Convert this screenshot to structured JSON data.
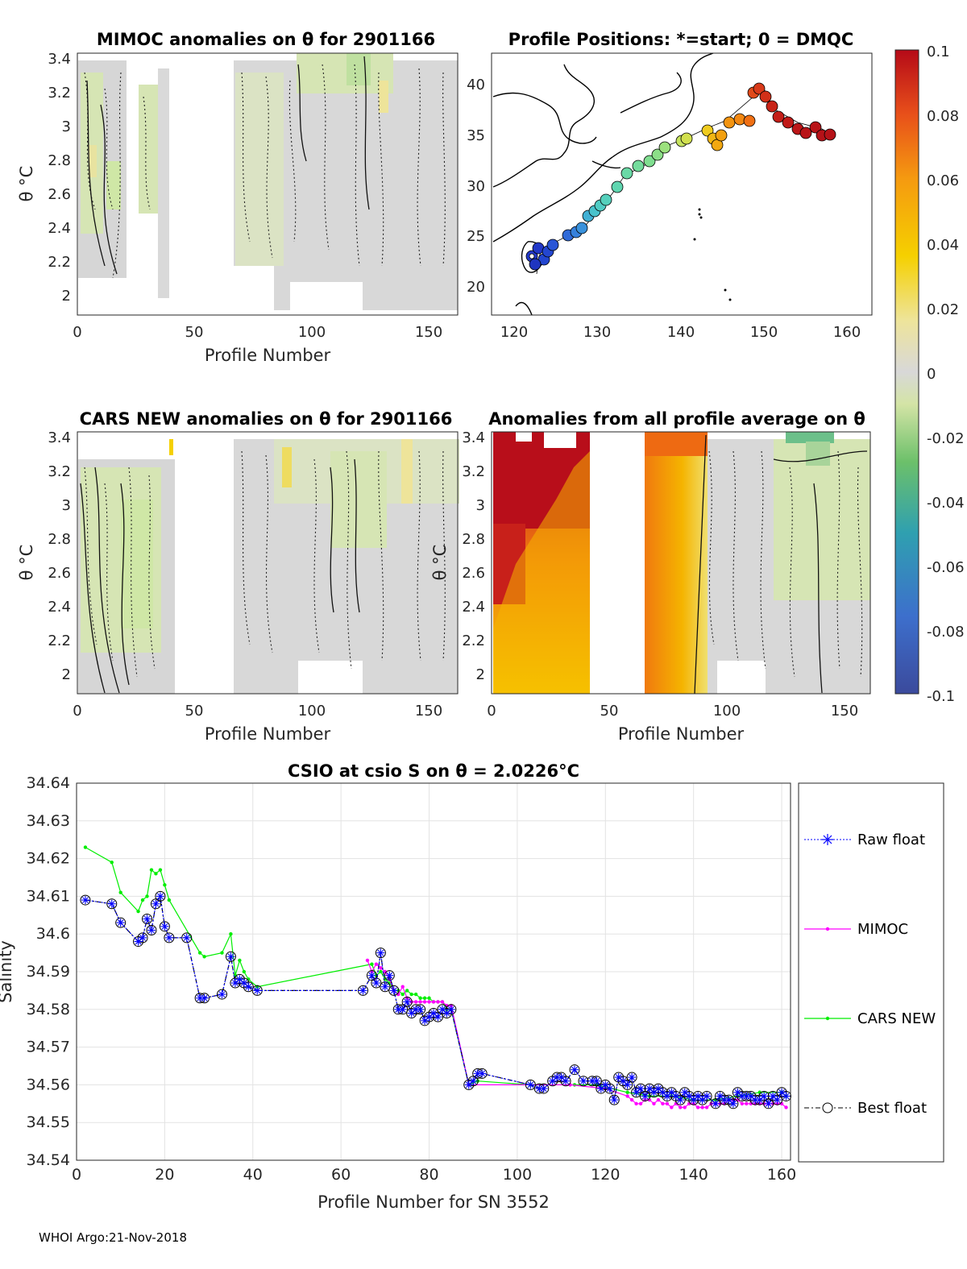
{
  "footer": "WHOI Argo:21-Nov-2018",
  "colors": {
    "raw": "#0000ff",
    "mimoc": "#ff00ff",
    "cars": "#00ee00",
    "best": "#000000",
    "grid": "#e3e3e3",
    "axis": "#262626"
  },
  "colorbar": {
    "ticks": [
      "0.1",
      "0.08",
      "0.06",
      "0.04",
      "0.02",
      "0",
      "-0.02",
      "-0.04",
      "-0.06",
      "-0.08",
      "-0.1"
    ],
    "range": [
      -0.1,
      0.1
    ]
  },
  "panels": {
    "mimoc": {
      "title": "MIMOC anomalies on θ  for 2901166",
      "xlabel": "Profile Number",
      "ylabel": "θ °C",
      "xticks": [
        "0",
        "50",
        "100",
        "150"
      ],
      "yticks": [
        "3.4",
        "3.2",
        "3",
        "2.8",
        "2.6",
        "2.4",
        "2.2",
        "2"
      ]
    },
    "map": {
      "title": "Profile Positions: *=start; 0 = DMQC",
      "xticks": [
        "120",
        "130",
        "140",
        "150",
        "160"
      ],
      "yticks": [
        "40",
        "35",
        "30",
        "25",
        "20"
      ]
    },
    "cars": {
      "title": "CARS NEW anomalies on θ for 2901166",
      "xlabel": "Profile Number",
      "ylabel": "θ °C",
      "xticks": [
        "0",
        "50",
        "100",
        "150"
      ],
      "yticks": [
        "3.4",
        "3.2",
        "3",
        "2.8",
        "2.6",
        "2.4",
        "2.2",
        "2"
      ]
    },
    "avg": {
      "title": "Anomalies from all profile average on θ",
      "xlabel": "Profile Number",
      "ylabel": "θ °C",
      "xticks": [
        "0",
        "50",
        "100",
        "150"
      ],
      "yticks": [
        "3.4",
        "3.2",
        "3",
        "2.8",
        "2.6",
        "2.4",
        "2.2",
        "2"
      ]
    }
  },
  "salinity": {
    "title": "CSIO at csio S on θ = 2.0226°C",
    "xlabel": "Profile Number for SN 3552",
    "ylabel": "Salinity",
    "xticks": [
      "0",
      "20",
      "40",
      "60",
      "80",
      "100",
      "120",
      "140",
      "160"
    ],
    "yticks": [
      "34.64",
      "34.63",
      "34.62",
      "34.61",
      "34.6",
      "34.59",
      "34.58",
      "34.57",
      "34.56",
      "34.55",
      "34.54"
    ],
    "legend": [
      "Raw float",
      "MIMOC",
      "CARS NEW",
      "Best float"
    ]
  },
  "chart_data": {
    "type": "line",
    "title": "CSIO at csio S on θ = 2.0226°C",
    "xlabel": "Profile Number for SN 3552",
    "ylabel": "Salinity",
    "xlim": [
      0,
      162
    ],
    "ylim": [
      34.54,
      34.64
    ],
    "grid": true,
    "legend_position": "right",
    "series": [
      {
        "name": "Raw float",
        "x": [
          2,
          8,
          10,
          14,
          15,
          16,
          17,
          18,
          19,
          20,
          21,
          25,
          28,
          29,
          33,
          35,
          36,
          37,
          38,
          39,
          41,
          65,
          67,
          68,
          69,
          70,
          71,
          72,
          73,
          74,
          75,
          76,
          77,
          78,
          79,
          80,
          81,
          82,
          83,
          84,
          85,
          89,
          90,
          91,
          92,
          103,
          105,
          106,
          108,
          109,
          110,
          111,
          113,
          115,
          117,
          118,
          119,
          120,
          121,
          122,
          123,
          124,
          125,
          126,
          127,
          128,
          129,
          130,
          131,
          132,
          133,
          134,
          135,
          136,
          137,
          138,
          139,
          140,
          141,
          142,
          143,
          145,
          146,
          147,
          148,
          149,
          150,
          151,
          152,
          153,
          154,
          155,
          156,
          157,
          158,
          159,
          160,
          161
        ],
        "values": [
          34.609,
          34.608,
          34.603,
          34.598,
          34.599,
          34.604,
          34.601,
          34.608,
          34.61,
          34.602,
          34.599,
          34.599,
          34.583,
          34.583,
          34.584,
          34.594,
          34.587,
          34.588,
          34.587,
          34.586,
          34.585,
          34.585,
          34.589,
          34.587,
          34.595,
          34.586,
          34.589,
          34.585,
          34.58,
          34.58,
          34.582,
          34.579,
          34.58,
          34.58,
          34.577,
          34.578,
          34.579,
          34.578,
          34.58,
          34.579,
          34.58,
          34.56,
          34.561,
          34.563,
          34.563,
          34.56,
          34.559,
          34.559,
          34.561,
          34.562,
          34.562,
          34.561,
          34.564,
          34.561,
          34.561,
          34.561,
          34.559,
          34.56,
          34.559,
          34.556,
          34.562,
          34.561,
          34.56,
          34.562,
          34.558,
          34.559,
          34.557,
          34.559,
          34.558,
          34.559,
          34.558,
          34.557,
          34.558,
          34.557,
          34.556,
          34.558,
          34.557,
          34.556,
          34.557,
          34.556,
          34.557,
          34.555,
          34.557,
          34.556,
          34.556,
          34.555,
          34.558,
          34.557,
          34.557,
          34.557,
          34.556,
          34.556,
          34.557,
          34.555,
          34.557,
          34.556,
          34.558,
          34.557
        ]
      },
      {
        "name": "MIMOC",
        "x": [
          66,
          67,
          68,
          69,
          70,
          71,
          72,
          73,
          74,
          75,
          76,
          77,
          78,
          79,
          80,
          81,
          82,
          83,
          84,
          85,
          89,
          112,
          120,
          125,
          126,
          127,
          128,
          129,
          130,
          131,
          132,
          133,
          134,
          135,
          136,
          137,
          138,
          139,
          140,
          141,
          142,
          143,
          144,
          145,
          146,
          147,
          148,
          149,
          150,
          151,
          152,
          153,
          154,
          155,
          156,
          157,
          158,
          159,
          160,
          161
        ],
        "values": [
          34.593,
          34.59,
          34.592,
          34.591,
          34.59,
          34.588,
          34.585,
          34.584,
          34.586,
          34.583,
          34.582,
          34.582,
          34.582,
          34.582,
          34.582,
          34.582,
          34.582,
          34.582,
          34.581,
          34.581,
          34.56,
          34.56,
          34.559,
          34.557,
          34.556,
          34.555,
          34.555,
          34.556,
          34.556,
          34.555,
          34.556,
          34.555,
          34.555,
          34.554,
          34.555,
          34.554,
          34.554,
          34.555,
          34.555,
          34.554,
          34.554,
          34.554,
          34.555,
          34.555,
          34.555,
          34.555,
          34.556,
          34.556,
          34.556,
          34.555,
          34.555,
          34.555,
          34.555,
          34.555,
          34.555,
          34.555,
          34.555,
          34.555,
          34.555,
          34.554
        ]
      },
      {
        "name": "CARS NEW",
        "x": [
          2,
          8,
          10,
          14,
          15,
          16,
          17,
          18,
          19,
          20,
          21,
          28,
          29,
          33,
          35,
          36,
          37,
          38,
          39,
          41,
          67,
          68,
          69,
          70,
          71,
          72,
          73,
          74,
          75,
          76,
          77,
          78,
          79,
          80,
          81,
          82,
          83,
          84,
          85,
          89,
          91,
          103,
          113,
          118,
          125,
          130,
          135,
          140,
          145,
          150,
          155,
          160,
          161
        ],
        "values": [
          34.623,
          34.619,
          34.611,
          34.606,
          34.609,
          34.61,
          34.617,
          34.616,
          34.617,
          34.613,
          34.609,
          34.595,
          34.594,
          34.595,
          34.6,
          34.589,
          34.593,
          34.59,
          34.588,
          34.586,
          34.592,
          34.589,
          34.59,
          34.588,
          34.587,
          34.585,
          34.585,
          34.584,
          34.585,
          34.584,
          34.584,
          34.583,
          34.583,
          34.583,
          34.582,
          34.582,
          34.582,
          34.58,
          34.58,
          34.56,
          34.561,
          34.56,
          34.56,
          34.56,
          34.558,
          34.557,
          34.557,
          34.556,
          34.556,
          34.557,
          34.558,
          34.558,
          34.557
        ]
      },
      {
        "name": "Best float",
        "x": [
          2,
          8,
          10,
          14,
          15,
          16,
          17,
          18,
          19,
          20,
          21,
          25,
          28,
          29,
          33,
          35,
          36,
          37,
          38,
          39,
          41,
          65,
          67,
          68,
          69,
          70,
          71,
          72,
          73,
          74,
          75,
          76,
          77,
          78,
          79,
          80,
          81,
          82,
          83,
          84,
          85,
          89,
          90,
          91,
          92,
          103,
          105,
          106,
          108,
          109,
          110,
          111,
          113,
          115,
          117,
          118,
          119,
          120,
          121,
          122,
          123,
          124,
          125,
          126,
          127,
          128,
          129,
          130,
          131,
          132,
          133,
          134,
          135,
          136,
          137,
          138,
          139,
          140,
          141,
          142,
          143,
          145,
          146,
          147,
          148,
          149,
          150,
          151,
          152,
          153,
          154,
          155,
          156,
          157,
          158,
          159,
          160,
          161
        ],
        "values": [
          34.609,
          34.608,
          34.603,
          34.598,
          34.599,
          34.604,
          34.601,
          34.608,
          34.61,
          34.602,
          34.599,
          34.599,
          34.583,
          34.583,
          34.584,
          34.594,
          34.587,
          34.588,
          34.587,
          34.586,
          34.585,
          34.585,
          34.589,
          34.587,
          34.595,
          34.586,
          34.589,
          34.585,
          34.58,
          34.58,
          34.582,
          34.579,
          34.58,
          34.58,
          34.577,
          34.578,
          34.579,
          34.578,
          34.58,
          34.579,
          34.58,
          34.56,
          34.561,
          34.563,
          34.563,
          34.56,
          34.559,
          34.559,
          34.561,
          34.562,
          34.562,
          34.561,
          34.564,
          34.561,
          34.561,
          34.561,
          34.559,
          34.56,
          34.559,
          34.556,
          34.562,
          34.561,
          34.56,
          34.562,
          34.558,
          34.559,
          34.557,
          34.559,
          34.558,
          34.559,
          34.558,
          34.557,
          34.558,
          34.557,
          34.556,
          34.558,
          34.557,
          34.556,
          34.557,
          34.556,
          34.557,
          34.555,
          34.557,
          34.556,
          34.556,
          34.555,
          34.558,
          34.557,
          34.557,
          34.557,
          34.556,
          34.556,
          34.557,
          34.555,
          34.557,
          34.556,
          34.558,
          34.557
        ]
      }
    ]
  }
}
